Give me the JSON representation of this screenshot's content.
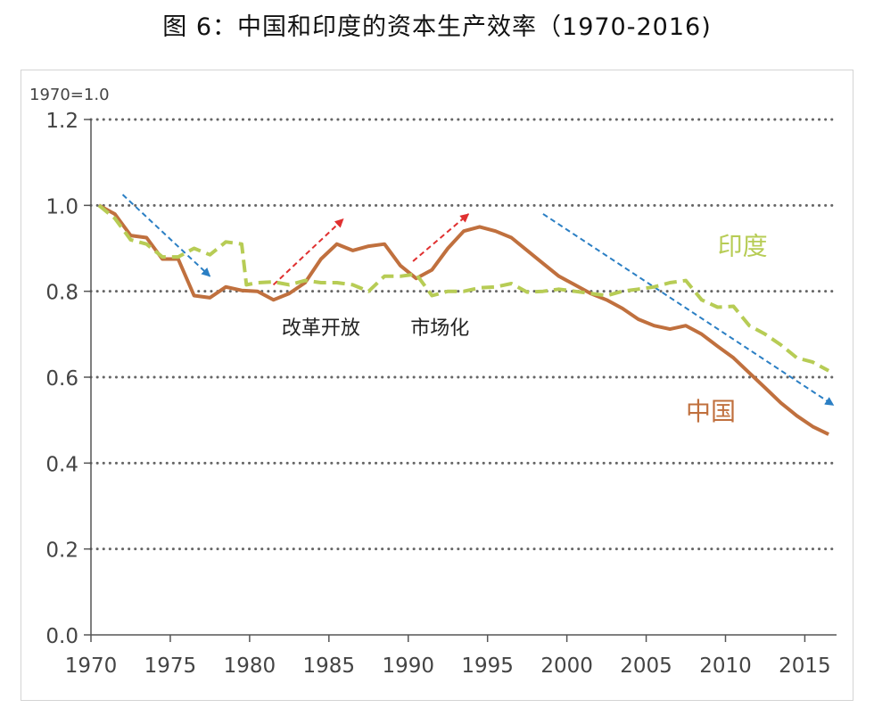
{
  "chart_data": {
    "type": "line",
    "title": "图 6：中国和印度的资本生产效率（1970-2016)",
    "unit_label": "1970=1.0",
    "xlim": [
      1970,
      2017
    ],
    "ylim": [
      0,
      1.2
    ],
    "xticks": [
      1970,
      1975,
      1980,
      1985,
      1990,
      1995,
      2000,
      2005,
      2010,
      2015
    ],
    "yticks": [
      "0.0",
      "0.2",
      "0.4",
      "0.6",
      "0.8",
      "1.0",
      "1.2"
    ],
    "grid": "horizontal-dotted",
    "series": [
      {
        "name": "中国",
        "color": "#c0703e",
        "style": "solid",
        "points": [
          [
            1970.5,
            1.0
          ],
          [
            1971.5,
            0.98
          ],
          [
            1972.5,
            0.93
          ],
          [
            1973.5,
            0.925
          ],
          [
            1974.5,
            0.875
          ],
          [
            1975.5,
            0.875
          ],
          [
            1976.5,
            0.79
          ],
          [
            1977.5,
            0.785
          ],
          [
            1978.5,
            0.81
          ],
          [
            1979.5,
            0.802
          ],
          [
            1980.5,
            0.8
          ],
          [
            1981.5,
            0.78
          ],
          [
            1982.5,
            0.795
          ],
          [
            1983.5,
            0.82
          ],
          [
            1984.5,
            0.875
          ],
          [
            1985.5,
            0.91
          ],
          [
            1986.5,
            0.895
          ],
          [
            1987.5,
            0.905
          ],
          [
            1988.5,
            0.91
          ],
          [
            1989.5,
            0.86
          ],
          [
            1990.5,
            0.83
          ],
          [
            1991.5,
            0.85
          ],
          [
            1992.5,
            0.9
          ],
          [
            1993.5,
            0.94
          ],
          [
            1994.5,
            0.95
          ],
          [
            1995.5,
            0.94
          ],
          [
            1996.5,
            0.925
          ],
          [
            1997.5,
            0.895
          ],
          [
            1998.5,
            0.865
          ],
          [
            1999.5,
            0.835
          ],
          [
            2000.5,
            0.815
          ],
          [
            2001.5,
            0.795
          ],
          [
            2002.5,
            0.78
          ],
          [
            2003.5,
            0.76
          ],
          [
            2004.5,
            0.735
          ],
          [
            2005.5,
            0.72
          ],
          [
            2006.5,
            0.712
          ],
          [
            2007.5,
            0.72
          ],
          [
            2008.5,
            0.7
          ],
          [
            2009.5,
            0.672
          ],
          [
            2010.5,
            0.645
          ],
          [
            2011.5,
            0.61
          ],
          [
            2012.5,
            0.575
          ],
          [
            2013.5,
            0.54
          ],
          [
            2014.5,
            0.51
          ],
          [
            2015.5,
            0.485
          ],
          [
            2016.5,
            0.467
          ]
        ]
      },
      {
        "name": "印度",
        "color": "#b7cc55",
        "style": "dashed",
        "points": [
          [
            1970.5,
            1.0
          ],
          [
            1971.5,
            0.97
          ],
          [
            1972.5,
            0.92
          ],
          [
            1973.5,
            0.91
          ],
          [
            1974.5,
            0.88
          ],
          [
            1975.5,
            0.88
          ],
          [
            1976.5,
            0.9
          ],
          [
            1977.5,
            0.885
          ],
          [
            1978.5,
            0.915
          ],
          [
            1979.5,
            0.91
          ],
          [
            1979.8,
            0.815
          ],
          [
            1980.5,
            0.82
          ],
          [
            1981.5,
            0.822
          ],
          [
            1982.5,
            0.815
          ],
          [
            1983.5,
            0.825
          ],
          [
            1984.5,
            0.82
          ],
          [
            1985.5,
            0.82
          ],
          [
            1986.5,
            0.815
          ],
          [
            1987.5,
            0.8
          ],
          [
            1988.5,
            0.835
          ],
          [
            1989.5,
            0.835
          ],
          [
            1990.5,
            0.84
          ],
          [
            1991.5,
            0.79
          ],
          [
            1992.5,
            0.8
          ],
          [
            1993.5,
            0.8
          ],
          [
            1994.5,
            0.808
          ],
          [
            1995.5,
            0.81
          ],
          [
            1996.5,
            0.818
          ],
          [
            1997.5,
            0.798
          ],
          [
            1998.5,
            0.8
          ],
          [
            1999.5,
            0.805
          ],
          [
            2000.5,
            0.8
          ],
          [
            2001.5,
            0.795
          ],
          [
            2002.5,
            0.79
          ],
          [
            2003.5,
            0.8
          ],
          [
            2004.5,
            0.805
          ],
          [
            2005.5,
            0.81
          ],
          [
            2006.5,
            0.82
          ],
          [
            2007.5,
            0.825
          ],
          [
            2008.5,
            0.78
          ],
          [
            2009.5,
            0.763
          ],
          [
            2010.5,
            0.765
          ],
          [
            2011.5,
            0.72
          ],
          [
            2012.5,
            0.7
          ],
          [
            2013.5,
            0.675
          ],
          [
            2014.5,
            0.645
          ],
          [
            2015.5,
            0.635
          ],
          [
            2016.5,
            0.615
          ]
        ]
      }
    ],
    "series_labels": [
      {
        "text": "印度",
        "x": 2009.5,
        "y": 0.885,
        "color": "#b7cc55"
      },
      {
        "text": "中国",
        "x": 2007.5,
        "y": 0.5,
        "color": "#c0703e"
      }
    ],
    "annotations": [
      {
        "text": "改革开放",
        "x": 1984.5,
        "y": 0.7
      },
      {
        "text": "市场化",
        "x": 1992,
        "y": 0.7
      }
    ],
    "arrows": [
      {
        "from": [
          1972,
          1.025
        ],
        "to": [
          1977.5,
          0.835
        ],
        "color": "#2b7fc4"
      },
      {
        "from": [
          1981.5,
          0.815
        ],
        "to": [
          1985.9,
          0.968
        ],
        "color": "#e03030"
      },
      {
        "from": [
          1990.3,
          0.87
        ],
        "to": [
          1993.8,
          0.98
        ],
        "color": "#e03030"
      },
      {
        "from": [
          1998.5,
          0.98
        ],
        "to": [
          2016.8,
          0.535
        ],
        "color": "#2b7fc4"
      }
    ]
  }
}
